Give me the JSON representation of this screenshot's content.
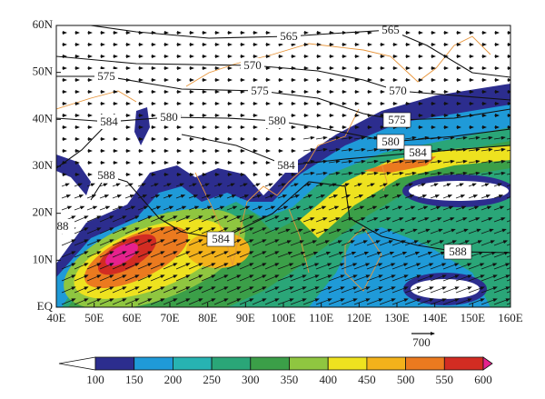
{
  "map": {
    "lat_labels": [
      "EQ",
      "10N",
      "20N",
      "30N",
      "40N",
      "50N",
      "60N"
    ],
    "lon_labels": [
      "40E",
      "50E",
      "60E",
      "70E",
      "80E",
      "90E",
      "100E",
      "110E",
      "120E",
      "130E",
      "140E",
      "150E",
      "160E"
    ],
    "contour_labels": [
      "565",
      "565",
      "570",
      "570",
      "575",
      "575",
      "575",
      "584",
      "580",
      "580",
      "580",
      "584",
      "584",
      "588",
      "88",
      "584",
      "588"
    ],
    "vector_reference": "700",
    "colorbar": {
      "ticks": [
        100,
        150,
        200,
        250,
        300,
        350,
        400,
        450,
        500,
        550,
        600
      ],
      "colors": [
        "#ffffff",
        "#2c2d8e",
        "#1f9ad8",
        "#27b3b2",
        "#2aa678",
        "#3b9f48",
        "#8fc640",
        "#eee21f",
        "#f3b21b",
        "#eb7a1f",
        "#d22c22",
        "#e6218d"
      ]
    }
  }
}
